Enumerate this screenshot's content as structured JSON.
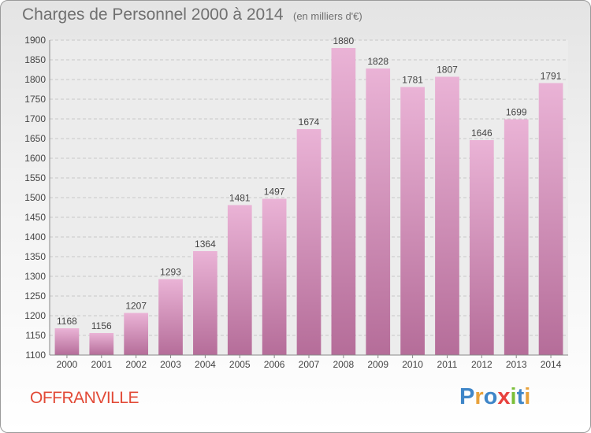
{
  "header": {
    "title": "Charges de Personnel 2000 à 2014",
    "unit": "(en milliers d'€)"
  },
  "footer": {
    "city": "OFFRANVILLE",
    "logo": {
      "letters": [
        "P",
        "r",
        "o",
        "x",
        "i",
        "t",
        "i"
      ],
      "colors": [
        "#3f86c8",
        "#e8a13a",
        "#3f86c8",
        "#e8413d",
        "#7bbf3a",
        "#3f86c8",
        "#e8a13a"
      ]
    }
  },
  "colors": {
    "bar_light": "#eab3d6",
    "bar_dark": "#b56d99",
    "accent": "#e24a37"
  },
  "chart_data": {
    "type": "bar",
    "title": "Charges de Personnel 2000 à 2014",
    "categories": [
      "2000",
      "2001",
      "2002",
      "2003",
      "2004",
      "2005",
      "2006",
      "2007",
      "2008",
      "2009",
      "2010",
      "2011",
      "2012",
      "2013",
      "2014"
    ],
    "values": [
      1168,
      1156,
      1207,
      1293,
      1364,
      1481,
      1497,
      1674,
      1880,
      1828,
      1781,
      1807,
      1646,
      1699,
      1791
    ],
    "ylim": [
      1100,
      1900
    ],
    "yticks": [
      1100,
      1150,
      1200,
      1250,
      1300,
      1350,
      1400,
      1450,
      1500,
      1550,
      1600,
      1650,
      1700,
      1750,
      1800,
      1850,
      1900
    ],
    "grid": true,
    "data_labels": true
  }
}
